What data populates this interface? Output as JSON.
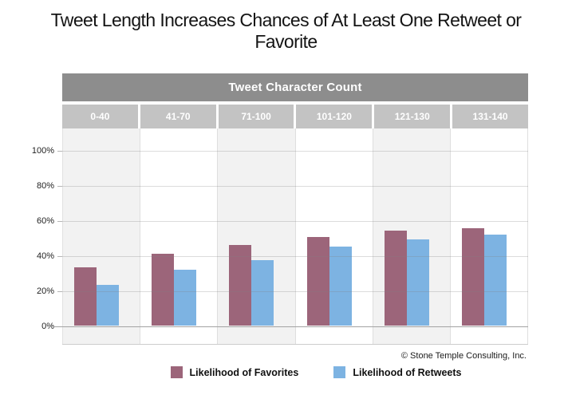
{
  "title": {
    "line1": "Tweet Length Increases Chances of At Least One Retweet or",
    "line2": "Favorite",
    "full": "Tweet Length Increases Chances of At Least One Retweet or Favorite"
  },
  "table_header": {
    "label": "Tweet Character Count"
  },
  "y_axis": {
    "ticks": [
      "0%",
      "20%",
      "40%",
      "60%",
      "80%",
      "100%"
    ]
  },
  "legend": [
    {
      "label": "Likelihood of Favorites",
      "color": "#9c657a"
    },
    {
      "label": "Likelihood of Retweets",
      "color": "#7db3e2"
    }
  ],
  "footer": {
    "copyright": "© Stone Temple Consulting, Inc."
  },
  "colors": {
    "header_bg": "#8d8d8d",
    "subheader_bg": "#c3c3c3",
    "header_text": "#ffffff",
    "plot_alt_bg": "#f2f2f2",
    "gridline": "rgba(130,130,130,0.28)",
    "zero_line": "#a3a3a3",
    "favorites": "#9c657a",
    "retweets": "#7db3e2"
  },
  "chart_data": {
    "type": "bar",
    "title": "Tweet Length Increases Chances of At Least One Retweet or Favorite",
    "group_header": "Tweet Character Count",
    "categories": [
      "0-40",
      "41-70",
      "71-100",
      "101-120",
      "121-130",
      "131-140"
    ],
    "series": [
      {
        "name": "Likelihood of Favorites",
        "color": "#9c657a",
        "values": [
          33,
          41,
          46,
          50.5,
          54,
          55.5
        ]
      },
      {
        "name": "Likelihood of Retweets",
        "color": "#7db3e2",
        "values": [
          23,
          32,
          37.5,
          45,
          49,
          52
        ]
      }
    ],
    "xlabel": "Tweet Character Count",
    "ylabel": "",
    "ylim": [
      0,
      100
    ],
    "y_tick_step": 20,
    "y_tick_format": "percent",
    "grid": true,
    "alternating_column_shading": true,
    "legend_position": "bottom",
    "annotations": [
      "© Stone Temple Consulting, Inc."
    ]
  }
}
